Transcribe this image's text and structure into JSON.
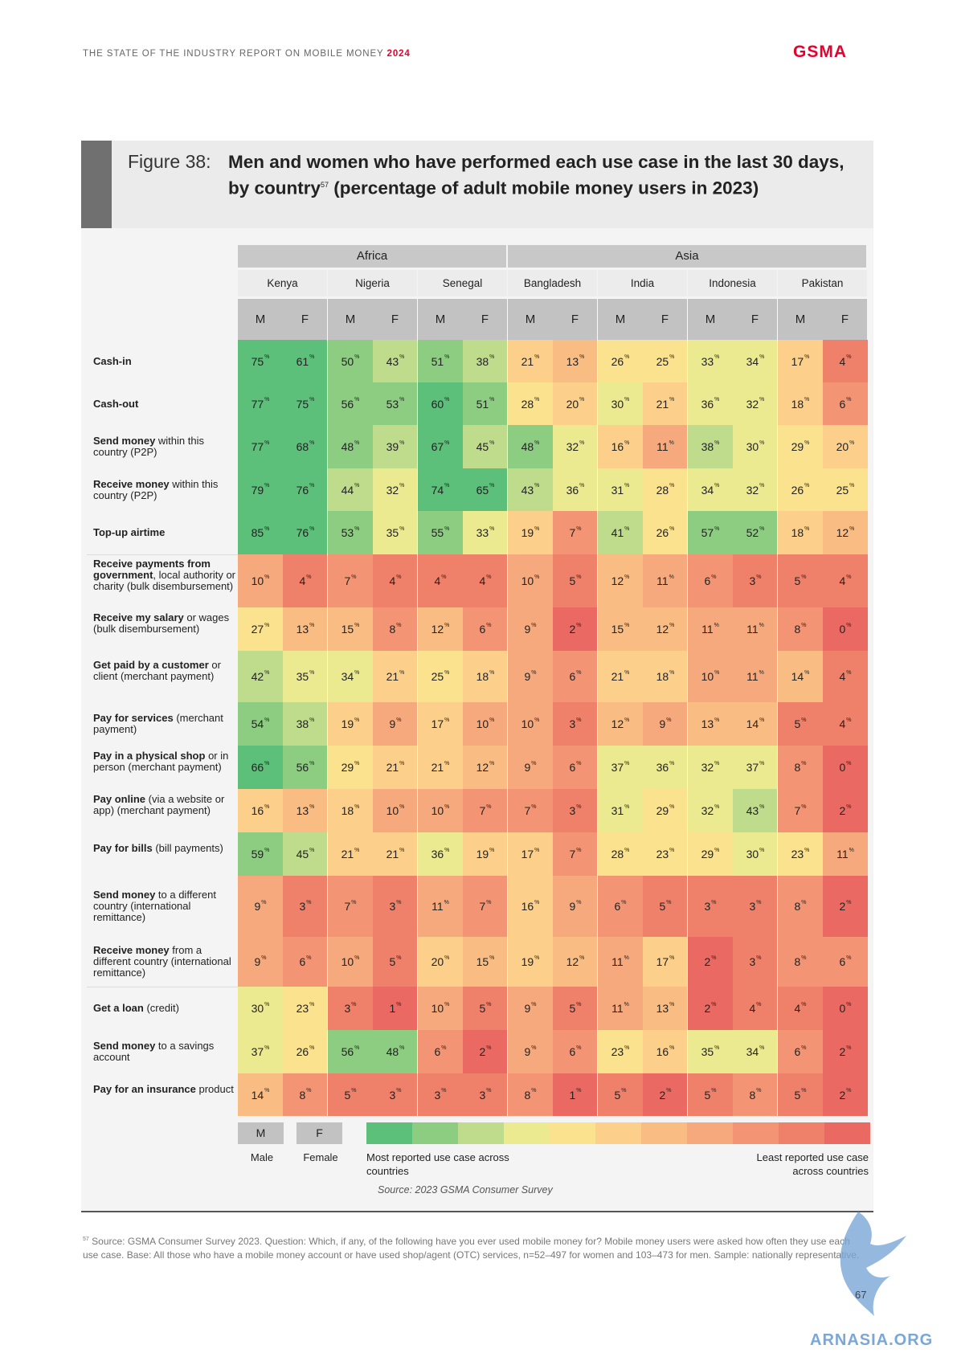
{
  "header": {
    "report": "THE STATE OF THE INDUSTRY REPORT ON MOBILE MONEY",
    "year": "2024",
    "logo": "GSMA"
  },
  "figure": {
    "label": "Figure 38:",
    "title": "Men and women who have performed each use case in the last 30 days, by country",
    "title_sup": "57",
    "title_tail": " (percentage of adult mobile money users in 2023)"
  },
  "chart_data": {
    "type": "heatmap",
    "regions": [
      {
        "name": "Africa",
        "countries": [
          "Kenya",
          "Nigeria",
          "Senegal"
        ]
      },
      {
        "name": "Asia",
        "countries": [
          "Bangladesh",
          "India",
          "Indonesia",
          "Pakistan"
        ]
      }
    ],
    "countries": [
      "Kenya",
      "Nigeria",
      "Senegal",
      "Bangladesh",
      "India",
      "Indonesia",
      "Pakistan"
    ],
    "genders": [
      "M",
      "F"
    ],
    "unit": "%",
    "rows": [
      {
        "label_bold": "Cash-in",
        "label_rest": "",
        "values": [
          75,
          61,
          50,
          43,
          51,
          38,
          21,
          13,
          26,
          25,
          33,
          34,
          17,
          4
        ]
      },
      {
        "label_bold": "Cash-out",
        "label_rest": "",
        "values": [
          77,
          75,
          56,
          53,
          60,
          51,
          28,
          20,
          30,
          21,
          36,
          32,
          18,
          6
        ]
      },
      {
        "label_bold": "Send money",
        "label_rest": " within this country (P2P)",
        "values": [
          77,
          68,
          48,
          39,
          67,
          45,
          48,
          32,
          16,
          11,
          38,
          30,
          29,
          20
        ]
      },
      {
        "label_bold": "Receive money",
        "label_rest": " within this country (P2P)",
        "values": [
          79,
          76,
          44,
          32,
          74,
          65,
          43,
          36,
          31,
          28,
          34,
          32,
          26,
          25
        ]
      },
      {
        "label_bold": "Top-up airtime",
        "label_rest": "",
        "values": [
          85,
          76,
          53,
          35,
          55,
          33,
          19,
          7,
          41,
          26,
          57,
          52,
          18,
          12
        ]
      },
      {
        "label_bold": "Receive payments from government",
        "label_rest": ", local authority or charity (bulk disembursement)",
        "values": [
          10,
          4,
          7,
          4,
          4,
          4,
          10,
          5,
          12,
          11,
          6,
          3,
          5,
          4
        ]
      },
      {
        "label_bold": "Receive my salary",
        "label_rest": " or wages (bulk disembursement)",
        "values": [
          27,
          13,
          15,
          8,
          12,
          6,
          9,
          2,
          15,
          12,
          11,
          11,
          8,
          0
        ]
      },
      {
        "label_bold": "Get paid by a customer",
        "label_rest": " or client (merchant payment)",
        "values": [
          42,
          35,
          34,
          21,
          25,
          18,
          9,
          6,
          21,
          18,
          10,
          11,
          14,
          4
        ]
      },
      {
        "label_bold": "Pay for services",
        "label_rest": " (merchant payment)",
        "values": [
          54,
          38,
          19,
          9,
          17,
          10,
          10,
          3,
          12,
          9,
          13,
          14,
          5,
          4
        ]
      },
      {
        "label_bold": "Pay in a physical shop",
        "label_rest": " or in person (merchant payment)",
        "values": [
          66,
          56,
          29,
          21,
          21,
          12,
          9,
          6,
          37,
          36,
          32,
          37,
          8,
          0
        ]
      },
      {
        "label_bold": "Pay online",
        "label_rest": " (via a website or app) (merchant payment)",
        "values": [
          16,
          13,
          18,
          10,
          10,
          7,
          7,
          3,
          31,
          29,
          32,
          43,
          7,
          2
        ]
      },
      {
        "label_bold": "Pay for bills",
        "label_rest": " (bill payments)",
        "values": [
          59,
          45,
          21,
          21,
          36,
          19,
          17,
          7,
          28,
          23,
          29,
          30,
          23,
          11
        ]
      },
      {
        "label_bold": "Send money",
        "label_rest": " to a different country (international remittance)",
        "values": [
          9,
          3,
          7,
          3,
          11,
          7,
          16,
          9,
          6,
          5,
          3,
          3,
          8,
          2
        ]
      },
      {
        "label_bold": "Receive money",
        "label_rest": " from a different country (international remittance)",
        "values": [
          9,
          6,
          10,
          5,
          20,
          15,
          19,
          12,
          11,
          17,
          2,
          3,
          8,
          6
        ]
      },
      {
        "label_bold": "Get a loan",
        "label_rest": " (credit)",
        "values": [
          30,
          23,
          3,
          1,
          10,
          5,
          9,
          5,
          11,
          13,
          2,
          4,
          4,
          0
        ]
      },
      {
        "label_bold": "Send money",
        "label_rest": " to a savings account",
        "values": [
          37,
          26,
          56,
          48,
          6,
          2,
          9,
          6,
          23,
          16,
          35,
          34,
          6,
          2
        ]
      },
      {
        "label_bold": "Pay for an insurance",
        "label_rest": " product",
        "values": [
          14,
          8,
          5,
          3,
          3,
          3,
          8,
          1,
          5,
          2,
          5,
          8,
          5,
          2
        ]
      }
    ],
    "color_scale": [
      "#5cbf7a",
      "#8dcd82",
      "#bfdc8c",
      "#ecea91",
      "#fbe28e",
      "#fcd08b",
      "#f9bd84",
      "#f6a97c",
      "#f39574",
      "#ef8069",
      "#ea6a63"
    ]
  },
  "legend": {
    "male_box": "M",
    "male_label": "Male",
    "female_box": "F",
    "female_label": "Female",
    "most": "Most reported use case across countries",
    "least": "Least reported use case across countries"
  },
  "source": "Source: 2023 GSMA Consumer Survey",
  "footnote": {
    "num": "57",
    "text": "Source: GSMA Consumer Survey 2023. Question: Which, if any, of the following have you ever used mobile money for? Mobile money users were asked how often they use each use case. Base: All those who have a mobile money account or have used shop/agent (OTC) services, n=52–497 for women and 103–473 for men. Sample: nationally representative."
  },
  "page_number": "67",
  "watermark": "ARNASIA.ORG"
}
